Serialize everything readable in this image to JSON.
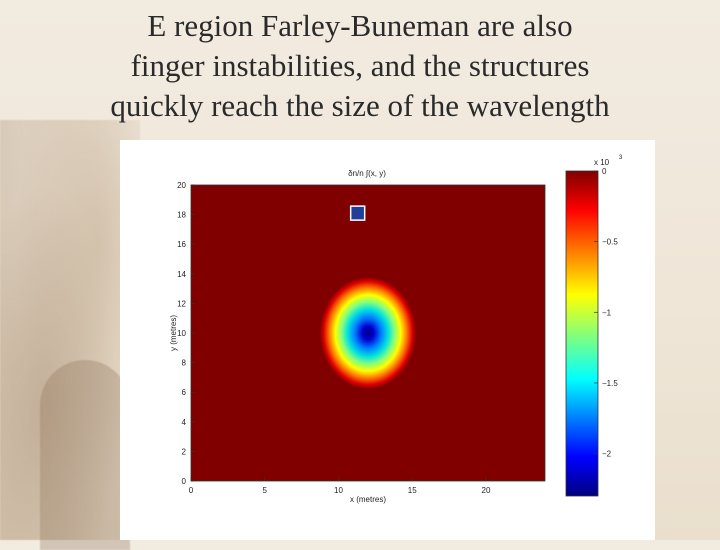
{
  "slide": {
    "title_lines": [
      "E region Farley-Buneman are also",
      "finger instabilities, and the structures",
      "quickly reach the size of the wavelength"
    ]
  },
  "chart_data": {
    "type": "heatmap",
    "title": "δn/n ∫(x, y)",
    "xlabel": "x (metres)",
    "ylabel": "y (metres)",
    "xlim": [
      0,
      24
    ],
    "ylim": [
      0,
      20
    ],
    "x_ticks": [
      "0",
      "5",
      "10",
      "15",
      "20"
    ],
    "y_ticks": [
      "0",
      "2",
      "4",
      "6",
      "8",
      "10",
      "12",
      "14",
      "16",
      "18",
      "20"
    ],
    "colorbar": {
      "range": [
        -2.3,
        0
      ],
      "ticks": [
        "0",
        "−0.5",
        "−1",
        "−1.5",
        "−2"
      ],
      "tick_values": [
        0,
        -0.5,
        -1,
        -1.5,
        -2
      ],
      "exponent_label": "x 10",
      "exponent": "3",
      "colormap": "jet"
    },
    "structure": {
      "shape": "gaussian depletion",
      "center_x": 12,
      "center_y": 10,
      "min_value": -2.3
    },
    "marker": {
      "x": 11.3,
      "y": 18.1,
      "color": "#1f3f9a"
    }
  }
}
